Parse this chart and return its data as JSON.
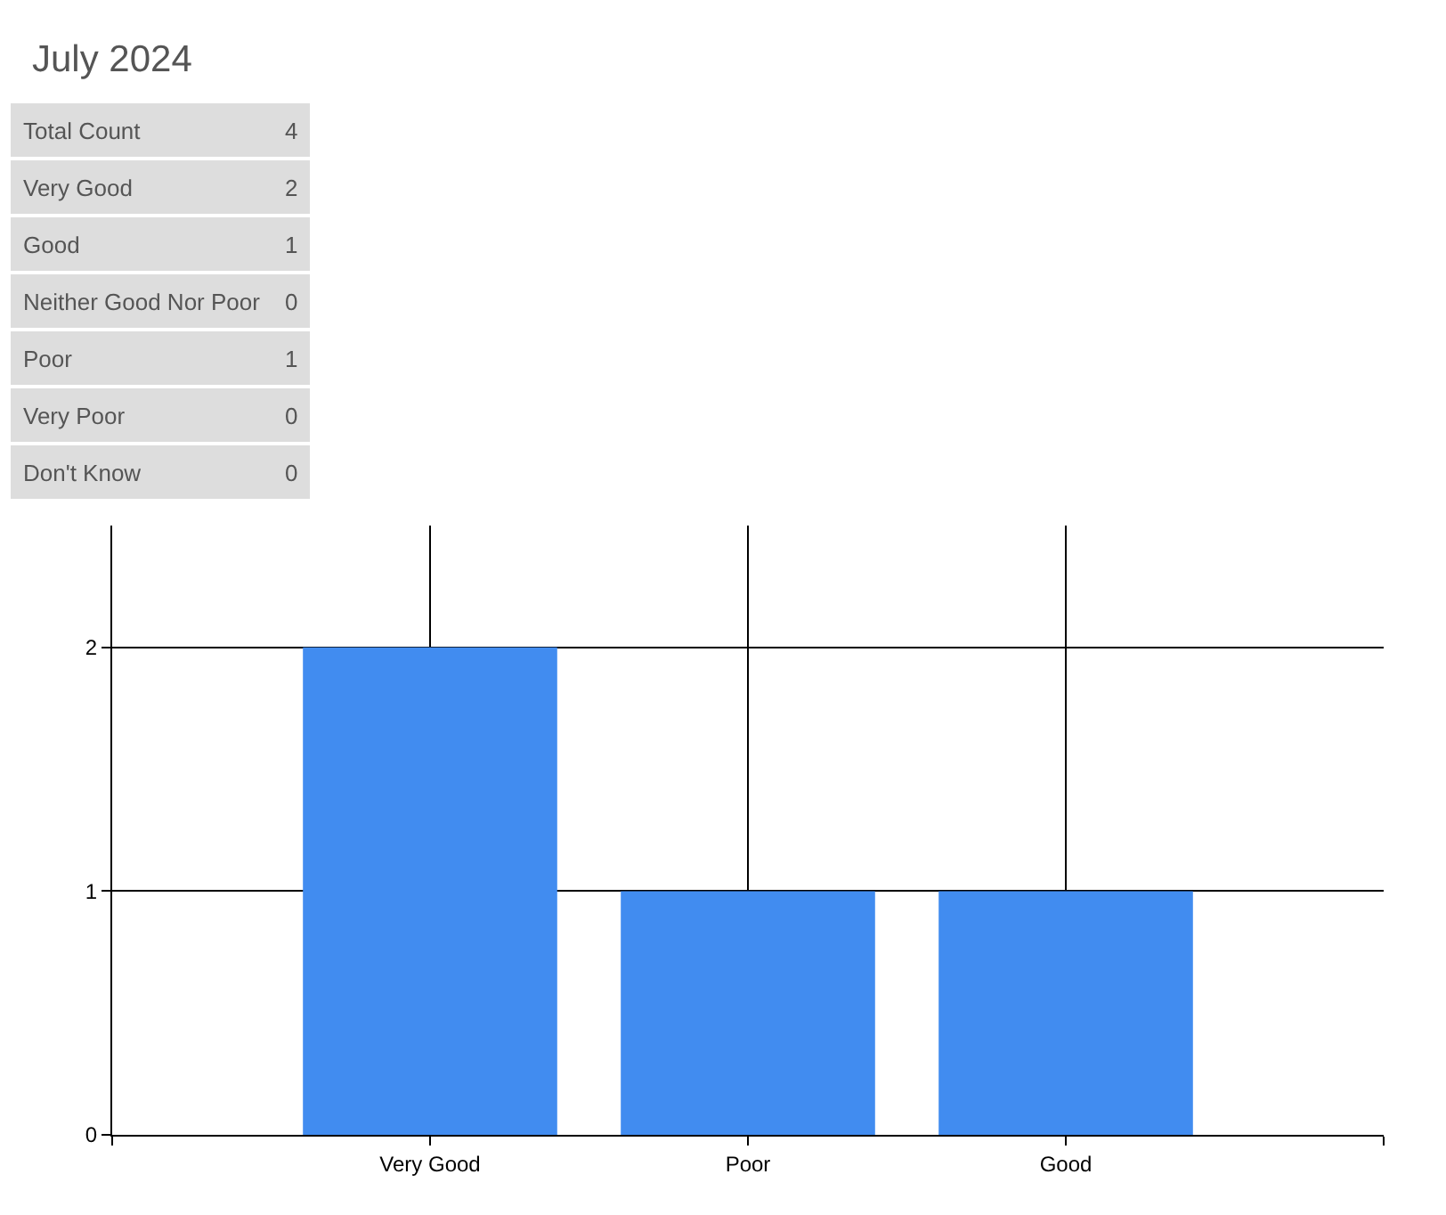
{
  "chart_data": {
    "type": "bar",
    "title": "July 2024",
    "categories": [
      "Very Good",
      "Poor",
      "Good"
    ],
    "values": [
      2,
      1,
      1
    ],
    "color": "#418cf0",
    "ylim": [
      0,
      2.5
    ],
    "yticks": [
      0,
      1,
      2
    ],
    "grid": true,
    "legend": false,
    "annotations": [
      "Total Count",
      "4",
      "Very Good",
      "2",
      "Good",
      "1",
      "Neither Good Nor Poor",
      "0",
      "Poor",
      "1",
      "Very Poor",
      "0",
      "Don't Know",
      "0"
    ]
  }
}
